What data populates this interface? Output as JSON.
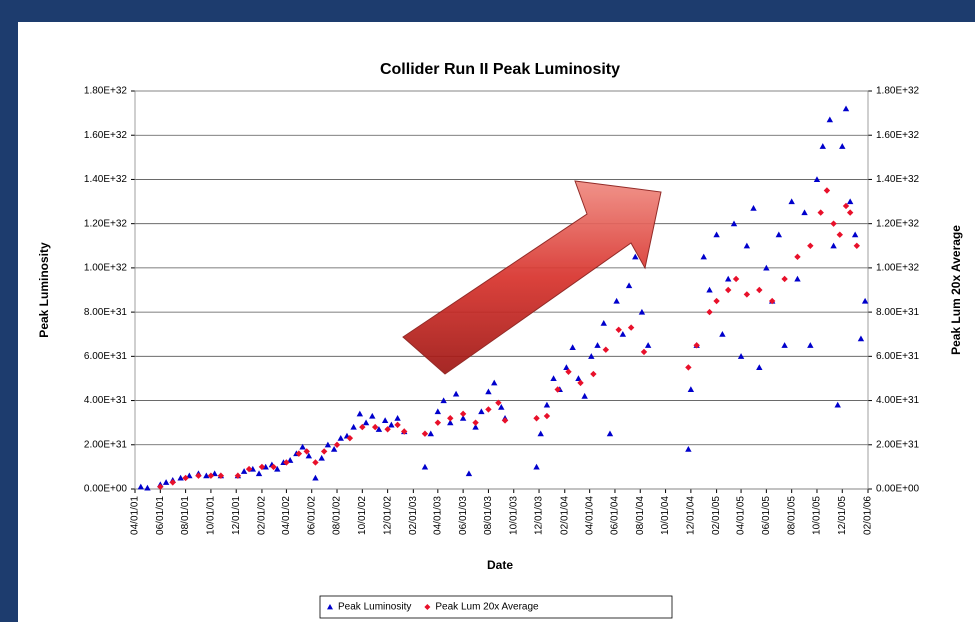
{
  "chart_data": {
    "type": "scatter",
    "title": "Collider Run II Peak Luminosity",
    "x_label": "Date",
    "y_label": "Peak Luminosity",
    "y2_label": "Peak Lum 20x Average",
    "grid": true,
    "legend": "bottom",
    "xlim": [
      "04/01/01",
      "02/01/06"
    ],
    "xticks": [
      "04/01/01",
      "06/01/01",
      "08/01/01",
      "10/01/01",
      "12/01/01",
      "02/01/02",
      "04/01/02",
      "06/01/02",
      "08/01/02",
      "10/01/02",
      "12/01/02",
      "02/01/03",
      "04/01/03",
      "06/01/03",
      "08/01/03",
      "10/01/03",
      "12/01/03",
      "02/01/04",
      "04/01/04",
      "06/01/04",
      "08/01/04",
      "10/01/04",
      "12/01/04",
      "02/01/05",
      "04/01/05",
      "06/01/05",
      "08/01/05",
      "10/01/05",
      "12/01/05",
      "02/01/06"
    ],
    "ylim": [
      0,
      1.8e+32
    ],
    "yticks": [
      {
        "value": 0,
        "label": "0.00E+00"
      },
      {
        "value": 2e+31,
        "label": "2.00E+31"
      },
      {
        "value": 4e+31,
        "label": "4.00E+31"
      },
      {
        "value": 6e+31,
        "label": "6.00E+31"
      },
      {
        "value": 8e+31,
        "label": "8.00E+31"
      },
      {
        "value": 1e+32,
        "label": "1.00E+32"
      },
      {
        "value": 1.2e+32,
        "label": "1.20E+32"
      },
      {
        "value": 1.4e+32,
        "label": "1.40E+32"
      },
      {
        "value": 1.6e+32,
        "label": "1.60E+32"
      },
      {
        "value": 1.8e+32,
        "label": "1.80E+32"
      }
    ],
    "y2lim": [
      0,
      1.8e+32
    ],
    "y2ticks": [
      {
        "value": 0,
        "label": "0.00E+00"
      },
      {
        "value": 2e+31,
        "label": "2.00E+31"
      },
      {
        "value": 4e+31,
        "label": "4.00E+31"
      },
      {
        "value": 6e+31,
        "label": "6.00E+31"
      },
      {
        "value": 8e+31,
        "label": "8.00E+31"
      },
      {
        "value": 1e+32,
        "label": "1.00E+32"
      },
      {
        "value": 1.2e+32,
        "label": "1.20E+32"
      },
      {
        "value": 1.4e+32,
        "label": "1.40E+32"
      },
      {
        "value": 1.6e+32,
        "label": "1.60E+32"
      },
      {
        "value": 1.8e+32,
        "label": "1.80E+32"
      }
    ],
    "series": [
      {
        "name": "Peak Luminosity",
        "color": "#0000cc",
        "marker": "triangle",
        "x": [
          "04/15/01",
          "05/01/01",
          "06/01/01",
          "06/15/01",
          "07/01/01",
          "07/20/01",
          "08/10/01",
          "09/01/01",
          "09/20/01",
          "10/10/01",
          "10/25/01",
          "12/05/01",
          "12/20/01",
          "01/10/02",
          "01/25/02",
          "02/10/02",
          "02/25/02",
          "03/10/02",
          "03/25/02",
          "04/10/02",
          "04/25/02",
          "05/10/02",
          "05/25/02",
          "06/10/02",
          "06/25/02",
          "07/10/02",
          "07/25/02",
          "08/10/02",
          "08/25/02",
          "09/10/02",
          "09/25/02",
          "10/10/02",
          "10/25/02",
          "11/10/02",
          "11/25/02",
          "12/10/02",
          "12/25/02",
          "01/10/03",
          "03/01/03",
          "03/15/03",
          "04/01/03",
          "04/15/03",
          "05/01/03",
          "05/15/03",
          "06/01/03",
          "06/15/03",
          "07/01/03",
          "07/15/03",
          "08/01/03",
          "08/15/03",
          "09/01/03",
          "09/10/03",
          "11/25/03",
          "12/05/03",
          "12/20/03",
          "01/05/04",
          "01/20/04",
          "02/05/04",
          "02/20/04",
          "03/05/04",
          "03/20/04",
          "04/05/04",
          "04/20/04",
          "05/05/04",
          "05/20/04",
          "06/05/04",
          "06/20/04",
          "07/05/04",
          "07/20/04",
          "08/05/04",
          "08/20/04",
          "11/25/04",
          "12/01/04",
          "12/15/04",
          "01/01/05",
          "01/15/05",
          "02/01/05",
          "02/15/05",
          "03/01/05",
          "03/15/05",
          "04/01/05",
          "04/15/05",
          "05/01/05",
          "05/15/05",
          "06/01/05",
          "06/15/05",
          "07/01/05",
          "07/15/05",
          "08/01/05",
          "08/15/05",
          "09/01/05",
          "09/15/05",
          "10/01/05",
          "10/15/05",
          "11/01/05",
          "11/10/05",
          "11/20/05",
          "12/01/05",
          "12/10/05",
          "12/20/05",
          "01/01/06",
          "01/15/06",
          "01/25/06"
        ],
        "values": [
          1e+30,
          5e+29,
          2e+30,
          3e+30,
          4e+30,
          5e+30,
          6e+30,
          7e+30,
          6e+30,
          7e+30,
          6e+30,
          6e+30,
          8e+30,
          9e+30,
          7e+30,
          1e+31,
          1.1e+31,
          9e+30,
          1.2e+31,
          1.3e+31,
          1.6e+31,
          1.9e+31,
          1.5e+31,
          5e+30,
          1.4e+31,
          2e+31,
          1.8e+31,
          2.3e+31,
          2.4e+31,
          2.8e+31,
          3.4e+31,
          3e+31,
          3.3e+31,
          2.7e+31,
          3.1e+31,
          2.9e+31,
          3.2e+31,
          2.6e+31,
          1e+31,
          2.5e+31,
          3.5e+31,
          4e+31,
          3e+31,
          4.3e+31,
          3.2e+31,
          7e+30,
          2.8e+31,
          3.5e+31,
          4.4e+31,
          4.8e+31,
          3.7e+31,
          3.2e+31,
          1e+31,
          2.5e+31,
          3.8e+31,
          5e+31,
          4.5e+31,
          5.5e+31,
          6.4e+31,
          5e+31,
          4.2e+31,
          6e+31,
          6.5e+31,
          7.5e+31,
          2.5e+31,
          8.5e+31,
          7e+31,
          9.2e+31,
          1.05e+32,
          8e+31,
          6.5e+31,
          1.8e+31,
          4.5e+31,
          6.5e+31,
          1.05e+32,
          9e+31,
          1.15e+32,
          7e+31,
          9.5e+31,
          1.2e+32,
          6e+31,
          1.1e+32,
          1.27e+32,
          5.5e+31,
          1e+32,
          8.5e+31,
          1.15e+32,
          6.5e+31,
          1.3e+32,
          9.5e+31,
          1.25e+32,
          6.5e+31,
          1.4e+32,
          1.55e+32,
          1.67e+32,
          1.1e+32,
          3.8e+31,
          1.55e+32,
          1.72e+32,
          1.3e+32,
          1.15e+32,
          6.8e+31,
          8.5e+31
        ]
      },
      {
        "name": "Peak Lum 20x Average",
        "color": "#e8102a",
        "marker": "diamond",
        "axis": "y2",
        "x": [
          "06/01/01",
          "07/01/01",
          "08/01/01",
          "09/01/01",
          "10/01/01",
          "10/25/01",
          "12/05/01",
          "01/01/02",
          "02/01/02",
          "03/01/02",
          "04/01/02",
          "05/01/02",
          "05/20/02",
          "06/10/02",
          "07/01/02",
          "08/01/02",
          "09/01/02",
          "10/01/02",
          "11/01/02",
          "12/01/02",
          "12/25/02",
          "01/10/03",
          "03/01/03",
          "04/01/03",
          "05/01/03",
          "06/01/03",
          "07/01/03",
          "08/01/03",
          "08/25/03",
          "09/10/03",
          "11/25/03",
          "12/20/03",
          "01/15/04",
          "02/10/04",
          "03/10/04",
          "04/10/04",
          "05/10/04",
          "06/10/04",
          "07/10/04",
          "08/10/04",
          "11/25/04",
          "12/15/04",
          "01/15/05",
          "02/01/05",
          "03/01/05",
          "03/20/05",
          "04/15/05",
          "05/15/05",
          "06/15/05",
          "07/15/05",
          "08/15/05",
          "09/15/05",
          "10/10/05",
          "10/25/05",
          "11/10/05",
          "11/25/05",
          "12/10/05",
          "12/20/05",
          "01/05/06"
        ],
        "values": [
          1e+30,
          3e+30,
          5e+30,
          6e+30,
          6e+30,
          6e+30,
          6e+30,
          9e+30,
          1e+31,
          1e+31,
          1.2e+31,
          1.6e+31,
          1.7e+31,
          1.2e+31,
          1.7e+31,
          2e+31,
          2.3e+31,
          2.8e+31,
          2.8e+31,
          2.7e+31,
          2.9e+31,
          2.6e+31,
          2.5e+31,
          3e+31,
          3.2e+31,
          3.4e+31,
          3e+31,
          3.6e+31,
          3.9e+31,
          3.1e+31,
          3.2e+31,
          3.3e+31,
          4.5e+31,
          5.3e+31,
          4.8e+31,
          5.2e+31,
          6.3e+31,
          7.2e+31,
          7.3e+31,
          6.2e+31,
          5.5e+31,
          6.5e+31,
          8e+31,
          8.5e+31,
          9e+31,
          9.5e+31,
          8.8e+31,
          9e+31,
          8.5e+31,
          9.5e+31,
          1.05e+32,
          1.1e+32,
          1.25e+32,
          1.35e+32,
          1.2e+32,
          1.15e+32,
          1.28e+32,
          1.25e+32,
          1.1e+32
        ]
      }
    ]
  }
}
